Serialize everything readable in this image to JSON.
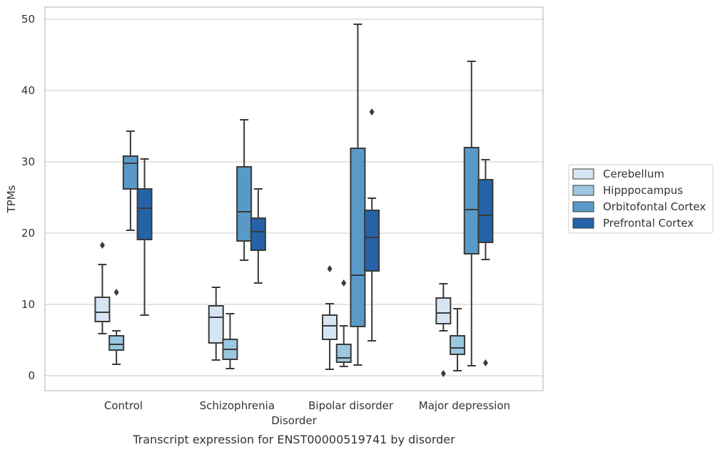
{
  "chart_data": {
    "type": "box",
    "title": "",
    "caption": "Transcript expression for ENST00000519741 by disorder",
    "xlabel": "Disorder",
    "ylabel": "TPMs",
    "ylim": [
      -2,
      52
    ],
    "yticks": [
      0,
      10,
      20,
      30,
      40,
      50
    ],
    "grid": "horizontal",
    "legend_position": "right",
    "categories": [
      "Control",
      "Schizophrenia",
      "Bipolar disorder",
      "Major depression"
    ],
    "series": [
      {
        "name": "Cerebellum",
        "color": "#d6e5f4",
        "boxes": [
          {
            "whisker_low": 5.9,
            "q1": 7.6,
            "median": 8.9,
            "q3": 11.0,
            "whisker_high": 15.6,
            "outliers": [
              18.3
            ]
          },
          {
            "whisker_low": 2.2,
            "q1": 4.6,
            "median": 8.2,
            "q3": 9.8,
            "whisker_high": 12.4,
            "outliers": []
          },
          {
            "whisker_low": 0.9,
            "q1": 5.1,
            "median": 7.0,
            "q3": 8.5,
            "whisker_high": 10.1,
            "outliers": [
              15.0
            ]
          },
          {
            "whisker_low": 6.3,
            "q1": 7.3,
            "median": 8.8,
            "q3": 10.9,
            "whisker_high": 12.9,
            "outliers": [
              0.3
            ]
          }
        ]
      },
      {
        "name": "Hipppocampus",
        "color": "#9bc7e0",
        "boxes": [
          {
            "whisker_low": 1.6,
            "q1": 3.6,
            "median": 4.4,
            "q3": 5.6,
            "whisker_high": 6.3,
            "outliers": [
              11.7
            ]
          },
          {
            "whisker_low": 1.0,
            "q1": 2.3,
            "median": 3.7,
            "q3": 5.1,
            "whisker_high": 8.7,
            "outliers": []
          },
          {
            "whisker_low": 1.3,
            "q1": 1.9,
            "median": 2.5,
            "q3": 4.4,
            "whisker_high": 7.0,
            "outliers": [
              13.0
            ]
          },
          {
            "whisker_low": 0.7,
            "q1": 3.0,
            "median": 3.9,
            "q3": 5.6,
            "whisker_high": 9.4,
            "outliers": []
          }
        ]
      },
      {
        "name": "Orbitofontal Cortex",
        "color": "#5899c8",
        "boxes": [
          {
            "whisker_low": 20.4,
            "q1": 26.2,
            "median": 29.8,
            "q3": 30.8,
            "whisker_high": 34.3,
            "outliers": []
          },
          {
            "whisker_low": 16.2,
            "q1": 18.9,
            "median": 23.0,
            "q3": 29.3,
            "whisker_high": 35.9,
            "outliers": []
          },
          {
            "whisker_low": 1.5,
            "q1": 6.9,
            "median": 14.1,
            "q3": 31.9,
            "whisker_high": 49.3,
            "outliers": []
          },
          {
            "whisker_low": 1.4,
            "q1": 17.1,
            "median": 23.3,
            "q3": 32.0,
            "whisker_high": 44.1,
            "outliers": []
          }
        ]
      },
      {
        "name": "Prefrontal Cortex",
        "color": "#2562a8",
        "boxes": [
          {
            "whisker_low": 8.5,
            "q1": 19.1,
            "median": 23.5,
            "q3": 26.2,
            "whisker_high": 30.4,
            "outliers": []
          },
          {
            "whisker_low": 13.0,
            "q1": 17.6,
            "median": 20.2,
            "q3": 22.1,
            "whisker_high": 26.2,
            "outliers": []
          },
          {
            "whisker_low": 4.9,
            "q1": 14.7,
            "median": 19.4,
            "q3": 23.2,
            "whisker_high": 24.9,
            "outliers": [
              37.0
            ]
          },
          {
            "whisker_low": 16.3,
            "q1": 18.7,
            "median": 22.5,
            "q3": 27.5,
            "whisker_high": 30.3,
            "outliers": [
              1.8
            ]
          }
        ]
      }
    ]
  }
}
